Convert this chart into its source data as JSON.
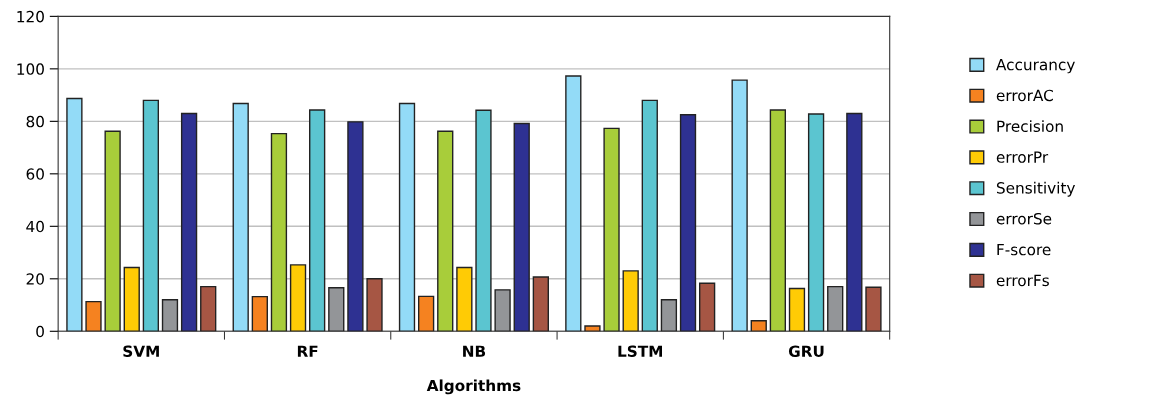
{
  "chart_data": {
    "type": "bar",
    "xlabel": "Algorithms",
    "categories": [
      "SVM",
      "RF",
      "NB",
      "LSTM",
      "GRU"
    ],
    "ylim": [
      0,
      120
    ],
    "yticks": [
      0,
      20,
      40,
      60,
      80,
      100,
      120
    ],
    "grid": "y",
    "legend": "right",
    "series": [
      {
        "name": "Accurancy",
        "color": "#93dbf7",
        "values": [
          88.7,
          86.8,
          86.8,
          97.3,
          95.7
        ]
      },
      {
        "name": "errorAC",
        "color": "#f58220",
        "values": [
          11.3,
          13.2,
          13.3,
          2,
          4
        ]
      },
      {
        "name": "Precision",
        "color": "#a8cd3a",
        "values": [
          76.2,
          75.3,
          76.2,
          77.3,
          84.3
        ]
      },
      {
        "name": "errorPr",
        "color": "#ffcb05",
        "values": [
          24.3,
          25.3,
          24.3,
          23,
          16.3
        ]
      },
      {
        "name": "Sensitivity",
        "color": "#5bc5d0",
        "values": [
          88,
          84.3,
          84.2,
          88,
          82.8
        ]
      },
      {
        "name": "errorSe",
        "color": "#939598",
        "values": [
          12,
          16.6,
          15.8,
          12,
          17
        ]
      },
      {
        "name": "F-score",
        "color": "#2e3192",
        "values": [
          83,
          79.8,
          79.2,
          82.5,
          83
        ]
      },
      {
        "name": "errorFs",
        "color": "#a65644",
        "values": [
          17,
          20,
          20.7,
          18.3,
          16.8
        ]
      }
    ]
  }
}
